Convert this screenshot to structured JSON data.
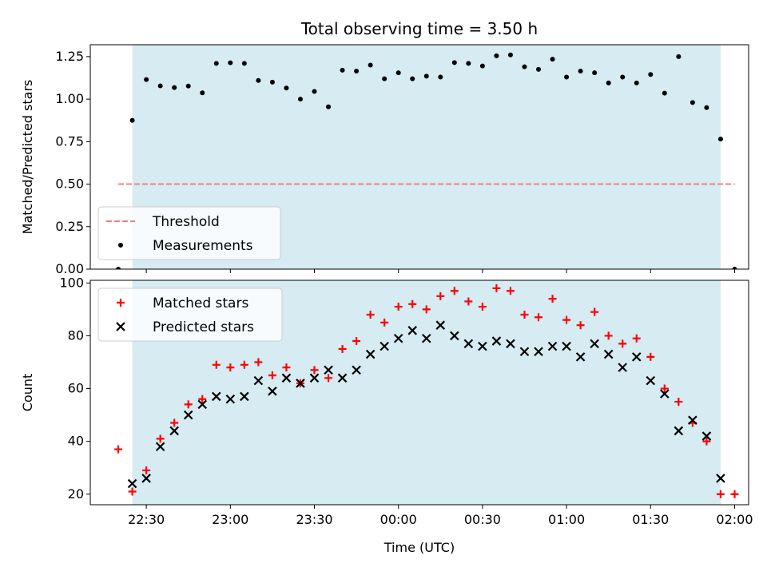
{
  "chart_data": [
    {
      "type": "scatter",
      "title": "Total observing time = 3.50 h",
      "xlabel": "",
      "ylabel": "Matched/Predicted stars",
      "ylim": [
        0,
        1.32
      ],
      "yticks": [
        "0.00",
        "0.25",
        "0.50",
        "0.75",
        "1.00",
        "1.25"
      ],
      "x_time_range": [
        "22:10",
        "02:05"
      ],
      "x_tick_times": [
        "22:30",
        "23:00",
        "23:30",
        "00:00",
        "00:30",
        "01:00",
        "01:30",
        "02:00"
      ],
      "shaded_span": [
        "22:25",
        "01:55"
      ],
      "threshold": 0.5,
      "threshold_span": [
        "22:20",
        "02:00"
      ],
      "legend": {
        "position": "lower-left",
        "entries": [
          "Threshold",
          "Measurements"
        ]
      },
      "colors": {
        "shade": "#add8e6",
        "threshold": "#f08080",
        "points": "#000000"
      },
      "series": [
        {
          "name": "Measurements",
          "x": [
            "22:20",
            "22:25",
            "22:30",
            "22:35",
            "22:40",
            "22:45",
            "22:50",
            "22:55",
            "23:00",
            "23:05",
            "23:10",
            "23:15",
            "23:20",
            "23:25",
            "23:30",
            "23:35",
            "23:40",
            "23:45",
            "23:50",
            "23:55",
            "00:00",
            "00:05",
            "00:10",
            "00:15",
            "00:20",
            "00:25",
            "00:30",
            "00:35",
            "00:40",
            "00:45",
            "00:50",
            "00:55",
            "01:00",
            "01:05",
            "01:10",
            "01:15",
            "01:20",
            "01:25",
            "01:30",
            "01:35",
            "01:40",
            "01:45",
            "01:50",
            "01:55",
            "02:00"
          ],
          "y": [
            0.0,
            0.875,
            1.115,
            1.078,
            1.068,
            1.077,
            1.037,
            1.21,
            1.214,
            1.21,
            1.11,
            1.1,
            1.065,
            1.0,
            1.045,
            0.955,
            1.17,
            1.165,
            1.2,
            1.12,
            1.155,
            1.12,
            1.135,
            1.13,
            1.215,
            1.21,
            1.195,
            1.255,
            1.26,
            1.19,
            1.175,
            1.235,
            1.13,
            1.165,
            1.155,
            1.095,
            1.13,
            1.095,
            1.145,
            1.035,
            1.25,
            0.98,
            0.95,
            0.765,
            0.0
          ]
        }
      ]
    },
    {
      "type": "scatter",
      "title": "",
      "xlabel": "Time (UTC)",
      "ylabel": "Count",
      "ylim": [
        16,
        101
      ],
      "yticks": [
        "20",
        "40",
        "60",
        "80",
        "100"
      ],
      "x_time_range": [
        "22:10",
        "02:05"
      ],
      "x_tick_times": [
        "22:30",
        "23:00",
        "23:30",
        "00:00",
        "00:30",
        "01:00",
        "01:30",
        "02:00"
      ],
      "shaded_span": [
        "22:25",
        "01:55"
      ],
      "legend": {
        "position": "upper-left",
        "entries": [
          "Matched stars",
          "Predicted stars"
        ]
      },
      "colors": {
        "shade": "#add8e6",
        "matched": "#ff0000",
        "predicted": "#000000"
      },
      "series": [
        {
          "name": "Matched stars",
          "x": [
            "22:20",
            "22:25",
            "22:30",
            "22:35",
            "22:40",
            "22:45",
            "22:50",
            "22:55",
            "23:00",
            "23:05",
            "23:10",
            "23:15",
            "23:20",
            "23:25",
            "23:30",
            "23:35",
            "23:40",
            "23:45",
            "23:50",
            "23:55",
            "00:00",
            "00:05",
            "00:10",
            "00:15",
            "00:20",
            "00:25",
            "00:30",
            "00:35",
            "00:40",
            "00:45",
            "00:50",
            "00:55",
            "01:00",
            "01:05",
            "01:10",
            "01:15",
            "01:20",
            "01:25",
            "01:30",
            "01:35",
            "01:40",
            "01:45",
            "01:50",
            "01:55",
            "02:00"
          ],
          "y": [
            37,
            21,
            29,
            41,
            47,
            54,
            56,
            69,
            68,
            69,
            70,
            65,
            68,
            62,
            67,
            64,
            75,
            78,
            88,
            85,
            91,
            92,
            90,
            95,
            97,
            93,
            91,
            98,
            97,
            88,
            87,
            94,
            86,
            84,
            89,
            80,
            77,
            79,
            72,
            60,
            55,
            47,
            40,
            20,
            20
          ]
        },
        {
          "name": "Predicted stars",
          "x": [
            "22:25",
            "22:30",
            "22:35",
            "22:40",
            "22:45",
            "22:50",
            "22:55",
            "23:00",
            "23:05",
            "23:10",
            "23:15",
            "23:20",
            "23:25",
            "23:30",
            "23:35",
            "23:40",
            "23:45",
            "23:50",
            "23:55",
            "00:00",
            "00:05",
            "00:10",
            "00:15",
            "00:20",
            "00:25",
            "00:30",
            "00:35",
            "00:40",
            "00:45",
            "00:50",
            "00:55",
            "01:00",
            "01:05",
            "01:10",
            "01:15",
            "01:20",
            "01:25",
            "01:30",
            "01:35",
            "01:40",
            "01:45",
            "01:50",
            "01:55"
          ],
          "y": [
            24,
            26,
            38,
            44,
            50,
            54,
            57,
            56,
            57,
            63,
            59,
            64,
            62,
            64,
            67,
            64,
            67,
            73,
            76,
            79,
            82,
            79,
            84,
            80,
            77,
            76,
            78,
            77,
            74,
            74,
            76,
            76,
            72,
            77,
            73,
            68,
            72,
            63,
            58,
            44,
            48,
            42,
            26
          ]
        }
      ]
    }
  ]
}
